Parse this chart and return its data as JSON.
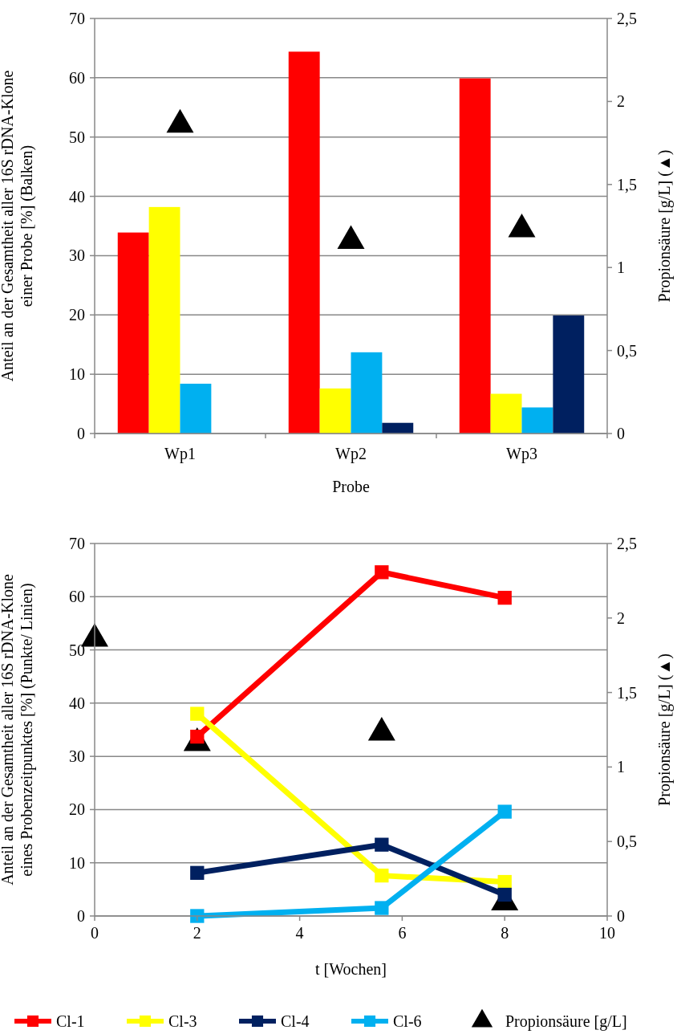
{
  "chart_data": [
    {
      "type": "bar",
      "categories": [
        "Wp1",
        "Wp2",
        "Wp3"
      ],
      "xlabel": "Probe",
      "ylabel": "Anteil an der Gesamtheit aller 16S rDNA-Klone\neiner Probe [%] (Balken)",
      "y2label": "Propionsäure [g/L] (▲)",
      "ylim": [
        0,
        70
      ],
      "yticks": [
        0,
        10,
        20,
        30,
        40,
        50,
        60,
        70
      ],
      "y2lim": [
        0,
        2.5
      ],
      "y2ticks": [
        0,
        {
          "value": 0.5,
          "label": "0,5"
        },
        1,
        {
          "value": 1.5,
          "label": "1,5"
        },
        2,
        {
          "value": 2.5,
          "label": "2,5"
        }
      ],
      "grid": "y",
      "legend": false,
      "series": [
        {
          "color": "#ff0000",
          "values": [
            33.9,
            64.4,
            59.9
          ]
        },
        {
          "color": "#ffff00",
          "values": [
            38.2,
            7.6,
            6.7
          ]
        },
        {
          "color": "#00b0f0",
          "values": [
            8.4,
            13.7,
            4.4
          ]
        },
        {
          "color": "#002060",
          "values": [
            0,
            1.8,
            19.9
          ]
        },
        {
          "type": "scatter",
          "axis": "y2",
          "marker": "triangle",
          "color": "#000000",
          "x": [
            "Wp1",
            "Wp2",
            "Wp3"
          ],
          "values": [
            1.86,
            1.16,
            1.23
          ]
        }
      ]
    },
    {
      "type": "line",
      "xlabel": "t [Wochen]",
      "ylabel": "Anteil an der Gesamtheit aller 16S rDNA-Klone\neines Probenzeitpunktes [%] (Punkte/ Linien)",
      "y2label": "Propionsäure [g/L] (▲)",
      "xlim": [
        0,
        10
      ],
      "xticks": [
        0,
        2,
        4,
        6,
        8,
        10
      ],
      "ylim": [
        0,
        70
      ],
      "yticks": [
        0,
        10,
        20,
        30,
        40,
        50,
        60,
        70
      ],
      "y2lim": [
        0,
        2.5
      ],
      "y2ticks": [
        0,
        {
          "value": 0.5,
          "label": "0,5"
        },
        1,
        {
          "value": 1.5,
          "label": "1,5"
        },
        2,
        {
          "value": 2.5,
          "label": "2,5"
        }
      ],
      "grid": "y",
      "legend": "bottom",
      "marker": "square",
      "line_style": "solid",
      "series": [
        {
          "name": "Cl-1",
          "color": "#ff0000",
          "x": [
            2,
            5.6,
            8
          ],
          "values": [
            33.7,
            64.6,
            59.8
          ]
        },
        {
          "name": "Cl-3",
          "color": "#ffff00",
          "x": [
            2,
            5.6,
            8
          ],
          "values": [
            38.0,
            7.6,
            6.4
          ]
        },
        {
          "name": "Cl-4",
          "color": "#002060",
          "x": [
            2,
            5.6,
            8
          ],
          "values": [
            8.1,
            13.4,
            4.0
          ]
        },
        {
          "name": "Cl-6",
          "color": "#00b0f0",
          "x": [
            2,
            5.6,
            8
          ],
          "values": [
            0,
            1.5,
            19.6
          ]
        },
        {
          "name": "Propionsäure [g/L]",
          "type": "scatter",
          "axis": "y2",
          "marker": "triangle",
          "color": "#000000",
          "x": [
            0,
            2,
            5.6,
            8
          ],
          "values": [
            1.86,
            1.16,
            1.23,
            0.09
          ]
        }
      ]
    }
  ]
}
